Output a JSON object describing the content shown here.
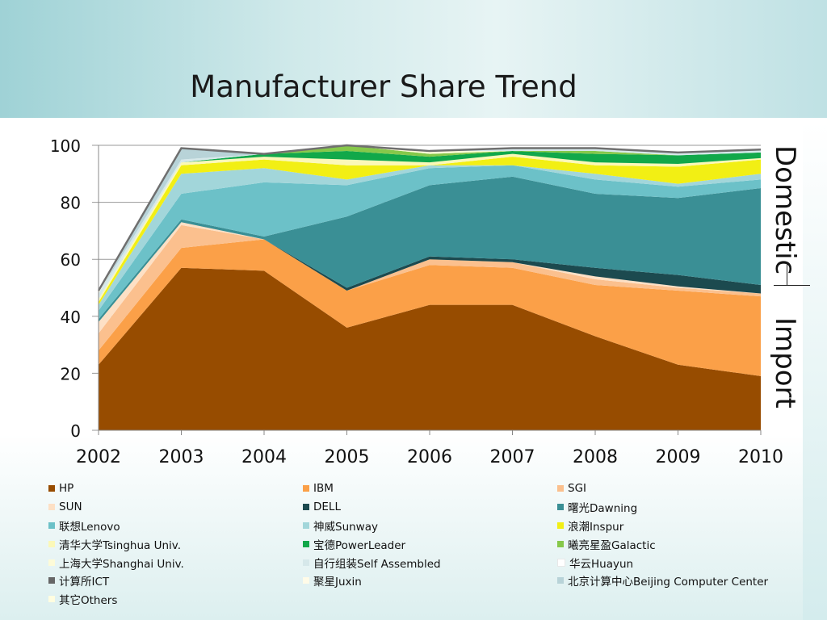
{
  "title": "Manufacturer Share Trend",
  "labels": {
    "domestic": "Domestic",
    "import": "Import"
  },
  "chart_data": {
    "type": "area",
    "stacked": true,
    "x": [
      2002,
      2003,
      2004,
      2005,
      2006,
      2007,
      2008,
      2009,
      2010
    ],
    "ylim": [
      0,
      100
    ],
    "yticks": [
      0,
      20,
      40,
      60,
      80,
      100
    ],
    "xticks": [
      "2002",
      "2003",
      "2004",
      "2005",
      "2006",
      "2007",
      "2008",
      "2009",
      "2010"
    ],
    "grid": true,
    "legend_position": "bottom",
    "series": [
      {
        "name": "HP",
        "color": "#974c00",
        "values": [
          23,
          57,
          56,
          36,
          44,
          44,
          33,
          23,
          19
        ]
      },
      {
        "name": "IBM",
        "color": "#fba048",
        "values": [
          5,
          7,
          11,
          13,
          14,
          13,
          18,
          26,
          28
        ]
      },
      {
        "name": "SGI",
        "color": "#fbc08e",
        "values": [
          6,
          8,
          0,
          0,
          2,
          2,
          2,
          1,
          1
        ]
      },
      {
        "name": "SUN",
        "color": "#fde0c5",
        "values": [
          4,
          1,
          0,
          0,
          0,
          0,
          1,
          0.5,
          0
        ]
      },
      {
        "name": "DELL",
        "color": "#1c4a4f",
        "values": [
          0,
          0,
          0,
          1,
          1,
          1,
          3,
          4,
          3
        ]
      },
      {
        "name": "曙光Dawning",
        "color": "#3a8f95",
        "values": [
          1,
          1,
          1,
          25,
          25,
          29,
          26,
          27,
          34
        ]
      },
      {
        "name": "联想Lenovo",
        "color": "#6cc1c8",
        "values": [
          3,
          9,
          19,
          11,
          6,
          4,
          5,
          4,
          3
        ]
      },
      {
        "name": "神威Sunway",
        "color": "#a2d6da",
        "values": [
          2,
          7,
          5,
          2,
          1,
          0,
          2,
          1,
          2
        ]
      },
      {
        "name": "浪潮Inspur",
        "color": "#f2ef14",
        "values": [
          1,
          3,
          3,
          5,
          0,
          3,
          3,
          6,
          5
        ]
      },
      {
        "name": "清华大学Tsinghua Univ.",
        "color": "#fbf8b8",
        "values": [
          1,
          1,
          1,
          2,
          1,
          1,
          1,
          1,
          0.5
        ]
      },
      {
        "name": "宝德PowerLeader",
        "color": "#11a84a",
        "values": [
          0,
          0,
          1,
          3,
          2,
          1,
          3,
          3,
          2
        ]
      },
      {
        "name": "曦亮星盈Galactic",
        "color": "#86c84a",
        "values": [
          0,
          0,
          0,
          2,
          1,
          0,
          1,
          0,
          0
        ]
      },
      {
        "name": "上海大学Shanghai Univ.",
        "color": "#fdfbd8",
        "values": [
          0,
          0,
          0,
          0,
          1,
          0,
          0,
          0,
          0
        ]
      },
      {
        "name": "自行组装Self Assembled",
        "color": "#d6e8ea",
        "values": [
          2,
          1,
          0,
          0,
          0,
          1,
          1,
          1,
          1
        ]
      },
      {
        "name": "华云Huayun",
        "color": "#ffffff",
        "values": [
          0,
          0,
          0,
          0,
          0,
          0,
          0,
          0,
          0
        ]
      },
      {
        "name": "计算所ICT",
        "color": "#666666",
        "values": [
          0,
          0,
          0,
          0,
          0,
          0,
          0,
          0,
          0
        ]
      },
      {
        "name": "聚星Juxin",
        "color": "#fffbe8",
        "values": [
          0,
          0,
          0,
          0,
          0,
          0,
          0,
          0,
          0
        ]
      },
      {
        "name": "北京计算中心Beijing Computer Center",
        "color": "#b8d3d8",
        "values": [
          0,
          4,
          0,
          0,
          0,
          0,
          0,
          0,
          0
        ]
      },
      {
        "name": "其它Others",
        "color": "#fffde0",
        "values": [
          1,
          0,
          0,
          0,
          0,
          0,
          0,
          0,
          0
        ]
      }
    ]
  }
}
